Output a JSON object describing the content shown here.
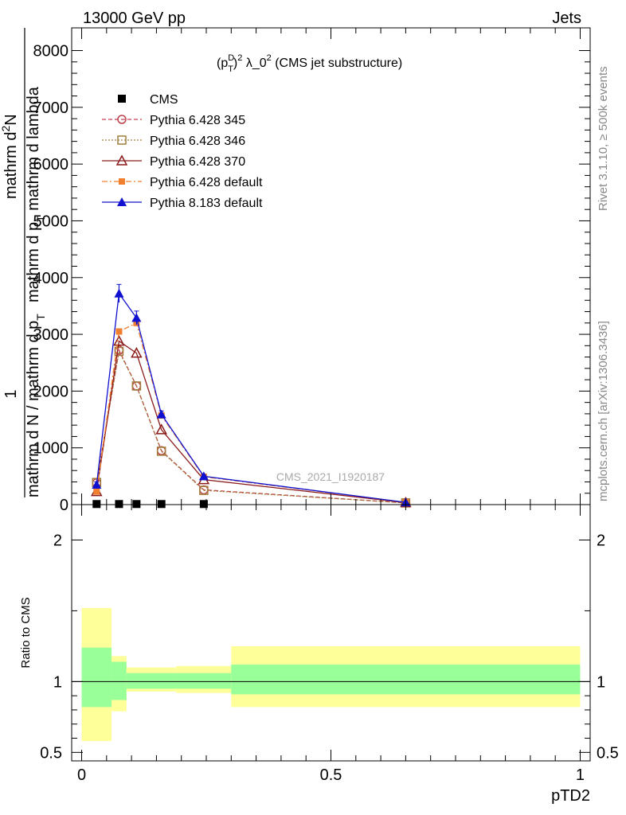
{
  "header": {
    "energy_label": "13000 GeV pp",
    "category_label": "Jets"
  },
  "side_labels": {
    "rivet_version": "Rivet 3.1.10, ≥ 500k events",
    "source": "mcplots.cern.ch [arXiv:1306.3436]"
  },
  "colors": {
    "cms": "#000000",
    "pythia_345": "#c0404a",
    "pythia_346": "#a07b3c",
    "pythia_370": "#8b1a1a",
    "pythia_default_6": "#f08030",
    "pythia_8": "#1010d0",
    "band_inner": "#99ff99",
    "band_outer": "#ffff99"
  },
  "chart_data": [
    {
      "type": "line",
      "title": "(p_T^D)^2 λ_0^2 (CMS jet substructure)",
      "title_parts": {
        "p": "(p",
        "sup_d": "D",
        "sub_t": "T",
        "close": ")",
        "sup_2": "2",
        "lambda": " λ_0",
        "sup_2b": "2",
        "rest": " (CMS jet substructure)"
      },
      "watermark": "CMS_2021_I1920187",
      "ylabel": "1 / mathrm d N / mathrm d p_T mathrm d^2N / mathrm d p_T mathrm d lambda",
      "ylabel_parts": {
        "numerator": "1",
        "denominator": "mathrm d N / mathrm d p",
        "sub": "T",
        "right_top": "mathrm d",
        "right_sup": "2",
        "right_n": "N",
        "right_bottom": "mathrm d p",
        "right_sub": "T",
        "right_tail": " mathrm d lambda"
      },
      "ylim": [
        0,
        8400
      ],
      "xlim": [
        -0.02,
        1.02
      ],
      "yticks": [
        0,
        1000,
        2000,
        3000,
        4000,
        5000,
        6000,
        7000,
        8000
      ],
      "ytick_labels": [
        "0",
        "1000",
        "2000",
        "3000",
        "4000",
        "5000",
        "6000",
        "7000",
        "8000"
      ],
      "series": [
        {
          "name": "CMS",
          "key": "cms",
          "marker": "square-filled",
          "line": "none",
          "x": [
            0.03,
            0.075,
            0.11,
            0.16,
            0.245
          ],
          "y": [
            10,
            10,
            10,
            10,
            10
          ]
        },
        {
          "name": "Pythia 6.428 345",
          "key": "pythia_345",
          "marker": "circle-open",
          "line": "dashed",
          "x": [
            0.03,
            0.075,
            0.11,
            0.16,
            0.245,
            0.65
          ],
          "y": [
            380,
            2720,
            2090,
            950,
            260,
            30
          ]
        },
        {
          "name": "Pythia 6.428 346",
          "key": "pythia_346",
          "marker": "square-open",
          "line": "dotted",
          "x": [
            0.03,
            0.075,
            0.11,
            0.16,
            0.245,
            0.65
          ],
          "y": [
            390,
            2700,
            2090,
            940,
            250,
            30
          ]
        },
        {
          "name": "Pythia 6.428 370",
          "key": "pythia_370",
          "marker": "triangle-open",
          "line": "solid",
          "x": [
            0.03,
            0.075,
            0.11,
            0.16,
            0.245,
            0.65
          ],
          "y": [
            230,
            2880,
            2670,
            1320,
            440,
            35
          ]
        },
        {
          "name": "Pythia 6.428 default",
          "key": "pythia_default_6",
          "marker": "square-filled-small",
          "line": "dashdot",
          "x": [
            0.03,
            0.075,
            0.11,
            0.16,
            0.245,
            0.65
          ],
          "y": [
            230,
            3050,
            3200,
            1570,
            490,
            40
          ]
        },
        {
          "name": "Pythia 8.183 default",
          "key": "pythia_8",
          "marker": "triangle-filled",
          "line": "solid",
          "x": [
            0.03,
            0.075,
            0.11,
            0.16,
            0.245,
            0.65
          ],
          "y": [
            350,
            3720,
            3290,
            1590,
            500,
            40
          ],
          "yerr": [
            50,
            160,
            120,
            60,
            20,
            10
          ]
        }
      ],
      "legend_position": "top-left"
    },
    {
      "type": "area",
      "ylabel": "Ratio to CMS",
      "xlabel": "pTD2",
      "ylim": [
        0.44,
        2.25
      ],
      "xlim": [
        -0.02,
        1.02
      ],
      "yticks": [
        0.5,
        1,
        2
      ],
      "ytick_labels": [
        "0.5",
        "1",
        "2"
      ],
      "xticks": [
        0,
        0.5,
        1
      ],
      "xtick_labels": [
        "0",
        "0.5",
        "1"
      ],
      "bins": [
        {
          "x0": 0.0,
          "x1": 0.06,
          "inner": [
            0.82,
            1.24
          ],
          "outer": [
            0.58,
            1.52
          ]
        },
        {
          "x0": 0.06,
          "x1": 0.09,
          "inner": [
            0.87,
            1.14
          ],
          "outer": [
            0.79,
            1.18
          ]
        },
        {
          "x0": 0.09,
          "x1": 0.19,
          "inner": [
            0.95,
            1.06
          ],
          "outer": [
            0.93,
            1.1
          ]
        },
        {
          "x0": 0.19,
          "x1": 0.3,
          "inner": [
            0.95,
            1.06
          ],
          "outer": [
            0.92,
            1.11
          ]
        },
        {
          "x0": 0.3,
          "x1": 1.0,
          "inner": [
            0.91,
            1.12
          ],
          "outer": [
            0.82,
            1.25
          ]
        }
      ],
      "reference": 1
    }
  ]
}
